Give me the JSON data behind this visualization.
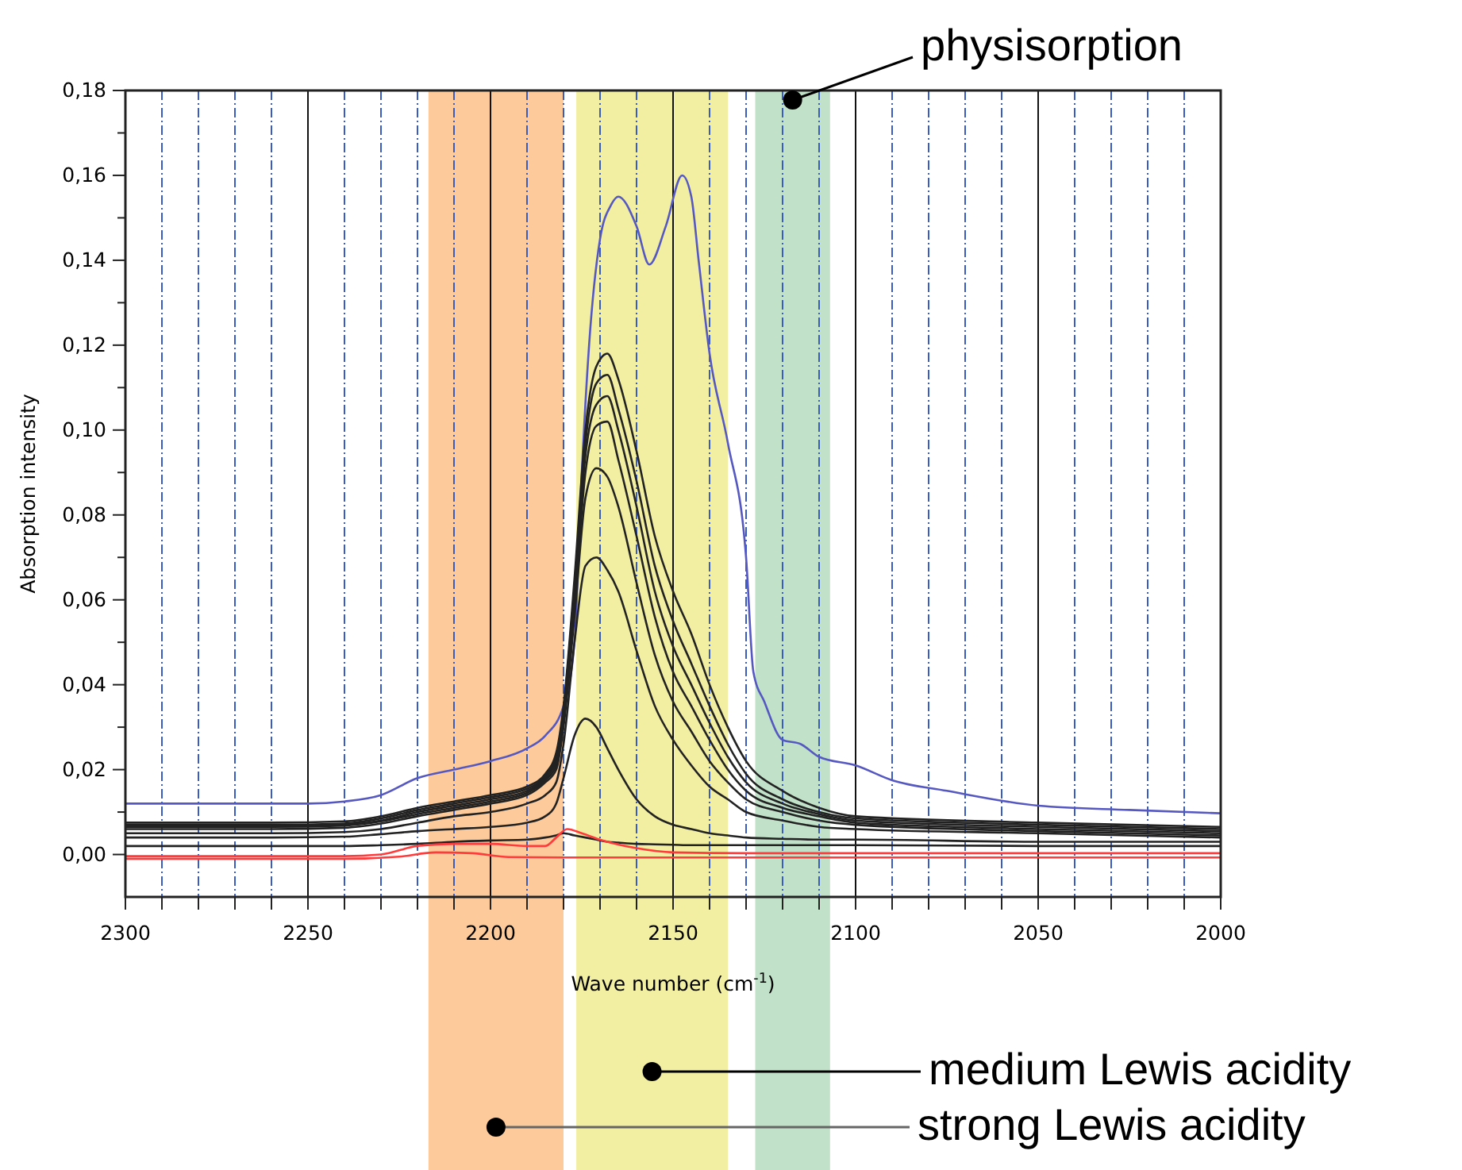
{
  "chart_data": {
    "type": "line",
    "xlabel": "Wave number (cm$^{-1}$)",
    "ylabel": "Absorption intensity",
    "xlim": [
      2300,
      2000
    ],
    "ylim": [
      -0.01,
      0.18
    ],
    "xticks": [
      2300,
      {
        "value": 2290,
        "label": null
      },
      {
        "value": 2280,
        "label": null
      },
      {
        "value": 2270,
        "label": null
      },
      {
        "value": 2260,
        "label": null
      },
      2250,
      {
        "value": 2240,
        "label": null
      },
      {
        "value": 2230,
        "label": null
      },
      {
        "value": 2220,
        "label": null
      },
      {
        "value": 2210,
        "label": null
      },
      2200,
      {
        "value": 2190,
        "label": null
      },
      {
        "value": 2180,
        "label": null
      },
      {
        "value": 2170,
        "label": null
      },
      {
        "value": 2160,
        "label": null
      },
      2150,
      {
        "value": 2140,
        "label": null
      },
      {
        "value": 2130,
        "label": null
      },
      {
        "value": 2120,
        "label": null
      },
      {
        "value": 2110,
        "label": null
      },
      2100,
      {
        "value": 2090,
        "label": null
      },
      {
        "value": 2080,
        "label": null
      },
      {
        "value": 2070,
        "label": null
      },
      {
        "value": 2060,
        "label": null
      },
      2050,
      {
        "value": 2040,
        "label": null
      },
      {
        "value": 2030,
        "label": null
      },
      {
        "value": 2020,
        "label": null
      },
      {
        "value": 2010,
        "label": null
      },
      2000
    ],
    "yticks": [
      {
        "value": 0,
        "label": "0,00"
      },
      {
        "value": 0.01,
        "label": null
      },
      {
        "value": 0.02,
        "label": "0,02"
      },
      {
        "value": 0.03,
        "label": null
      },
      {
        "value": 0.04,
        "label": "0,04"
      },
      {
        "value": 0.05,
        "label": null
      },
      {
        "value": 0.06,
        "label": "0,06"
      },
      {
        "value": 0.07,
        "label": null
      },
      {
        "value": 0.08,
        "label": "0,08"
      },
      {
        "value": 0.09,
        "label": null
      },
      {
        "value": 0.1,
        "label": "0,10"
      },
      {
        "value": 0.11,
        "label": null
      },
      {
        "value": 0.12,
        "label": "0,12"
      },
      {
        "value": 0.13,
        "label": null
      },
      {
        "value": 0.14,
        "label": "0,14"
      },
      {
        "value": 0.15,
        "label": null
      },
      {
        "value": 0.16,
        "label": "0,16"
      },
      {
        "value": 0.17,
        "label": null
      },
      {
        "value": 0.18,
        "label": "0,18"
      }
    ],
    "grid": "x",
    "x": [
      2300,
      2260,
      2240,
      2230,
      2220,
      2210,
      2200,
      2190,
      2185,
      2182,
      2180,
      2177,
      2174,
      2171,
      2168,
      2165,
      2160,
      2155,
      2150,
      2145,
      2140,
      2135,
      2130,
      2120,
      2110,
      2100,
      2050,
      2000
    ],
    "series": [
      {
        "color": "#5558c0",
        "x": [
          2300,
          2250,
          2240,
          2230,
          2220,
          2210,
          2200,
          2190,
          2185,
          2180,
          2177,
          2175,
          2173,
          2170,
          2167,
          2165,
          2160,
          2156.5,
          2152,
          2147.5,
          2145,
          2143,
          2140,
          2135,
          2130,
          2128,
          2125,
          2120,
          2115,
          2110,
          2100,
          2090,
          2075,
          2050,
          2025,
          2000
        ],
        "values": [
          0.012,
          0.012,
          0.0125,
          0.014,
          0.018,
          0.02,
          0.022,
          0.025,
          0.028,
          0.035,
          0.05,
          0.09,
          0.12,
          0.145,
          0.153,
          0.155,
          0.148,
          0.139,
          0.148,
          0.16,
          0.155,
          0.14,
          0.118,
          0.097,
          0.07,
          0.043,
          0.036,
          0.027,
          0.026,
          0.023,
          0.021,
          0.0175,
          0.015,
          0.0115,
          0.0105,
          0.0097
        ]
      },
      {
        "color": "#222222",
        "values": [
          0.0075,
          0.0075,
          0.0078,
          0.009,
          0.011,
          0.0125,
          0.014,
          0.016,
          0.019,
          0.024,
          0.035,
          0.065,
          0.1,
          0.115,
          0.118,
          0.112,
          0.095,
          0.075,
          0.062,
          0.052,
          0.04,
          0.03,
          0.022,
          0.015,
          0.011,
          0.009,
          0.0075,
          0.0065
        ]
      },
      {
        "color": "#222222",
        "values": [
          0.007,
          0.007,
          0.0073,
          0.0085,
          0.0105,
          0.012,
          0.0135,
          0.0155,
          0.0185,
          0.023,
          0.034,
          0.063,
          0.097,
          0.111,
          0.113,
          0.105,
          0.088,
          0.068,
          0.055,
          0.045,
          0.035,
          0.026,
          0.019,
          0.013,
          0.01,
          0.0085,
          0.007,
          0.006
        ]
      },
      {
        "color": "#222222",
        "values": [
          0.0068,
          0.0068,
          0.007,
          0.008,
          0.01,
          0.0115,
          0.013,
          0.015,
          0.018,
          0.022,
          0.033,
          0.061,
          0.094,
          0.106,
          0.108,
          0.1,
          0.082,
          0.062,
          0.049,
          0.04,
          0.031,
          0.023,
          0.017,
          0.012,
          0.0095,
          0.008,
          0.0065,
          0.0055
        ]
      },
      {
        "color": "#222222",
        "values": [
          0.0065,
          0.0065,
          0.0068,
          0.0078,
          0.0095,
          0.011,
          0.0125,
          0.0145,
          0.0175,
          0.021,
          0.032,
          0.059,
          0.09,
          0.101,
          0.102,
          0.093,
          0.075,
          0.056,
          0.043,
          0.035,
          0.027,
          0.02,
          0.015,
          0.011,
          0.009,
          0.0075,
          0.006,
          0.005
        ]
      },
      {
        "color": "#222222",
        "values": [
          0.006,
          0.006,
          0.0063,
          0.0073,
          0.009,
          0.0105,
          0.012,
          0.014,
          0.017,
          0.02,
          0.03,
          0.056,
          0.084,
          0.091,
          0.089,
          0.082,
          0.064,
          0.047,
          0.036,
          0.029,
          0.022,
          0.017,
          0.013,
          0.01,
          0.008,
          0.007,
          0.0055,
          0.0045
        ]
      },
      {
        "color": "#222222",
        "values": [
          0.005,
          0.005,
          0.0053,
          0.006,
          0.0075,
          0.009,
          0.01,
          0.012,
          0.014,
          0.017,
          0.026,
          0.05,
          0.068,
          0.07,
          0.067,
          0.062,
          0.048,
          0.035,
          0.027,
          0.021,
          0.016,
          0.013,
          0.01,
          0.008,
          0.0065,
          0.006,
          0.005,
          0.004
        ]
      },
      {
        "color": "#222222",
        "values": [
          0.004,
          0.004,
          0.0042,
          0.0048,
          0.0055,
          0.006,
          0.0065,
          0.0075,
          0.009,
          0.012,
          0.018,
          0.028,
          0.032,
          0.03,
          0.025,
          0.02,
          0.013,
          0.009,
          0.007,
          0.006,
          0.005,
          0.0045,
          0.004,
          0.0037,
          0.0035,
          0.0035,
          0.003,
          0.003
        ]
      },
      {
        "color": "#222222",
        "values": [
          0.002,
          0.002,
          0.002,
          0.0022,
          0.0025,
          0.003,
          0.0033,
          0.0035,
          0.004,
          0.0045,
          0.005,
          0.0045,
          0.004,
          0.0035,
          0.003,
          0.0028,
          0.0025,
          0.0024,
          0.0023,
          0.0022,
          0.0022,
          0.0022,
          0.0022,
          0.0022,
          0.0022,
          0.0022,
          0.002,
          0.002
        ]
      },
      {
        "color": "#ff3b3b",
        "x": [
          2300,
          2240,
          2230,
          2220,
          2210,
          2200,
          2190,
          2185,
          2182,
          2179,
          2175,
          2170,
          2160,
          2150,
          2130,
          2100,
          2000
        ],
        "values": [
          -0.0004,
          -0.0004,
          0,
          0.002,
          0.0025,
          0.0025,
          0.002,
          0.002,
          0.004,
          0.006,
          0.005,
          0.0035,
          0.0015,
          0.0005,
          0.0003,
          0.0003,
          0.0003
        ]
      },
      {
        "color": "#ff3b3b",
        "x": [
          2300,
          2240,
          2225,
          2215,
          2205,
          2195,
          2180,
          2100,
          2000
        ],
        "values": [
          -0.001,
          -0.001,
          -0.0005,
          0.0005,
          0.0003,
          -0.0006,
          -0.0007,
          -0.0007,
          -0.0007
        ]
      }
    ],
    "bands": [
      {
        "axis": "x",
        "from": 2217,
        "to": 2180,
        "color": "#fdcb9b",
        "label": "strong Lewis acidity"
      },
      {
        "axis": "x",
        "from": 2176.5,
        "to": 2135,
        "color": "#f2efa3",
        "label": "medium Lewis acidity"
      },
      {
        "axis": "x",
        "from": 2127.5,
        "to": 2107,
        "color": "#c1e2c9",
        "label": "physisorption"
      }
    ]
  }
}
